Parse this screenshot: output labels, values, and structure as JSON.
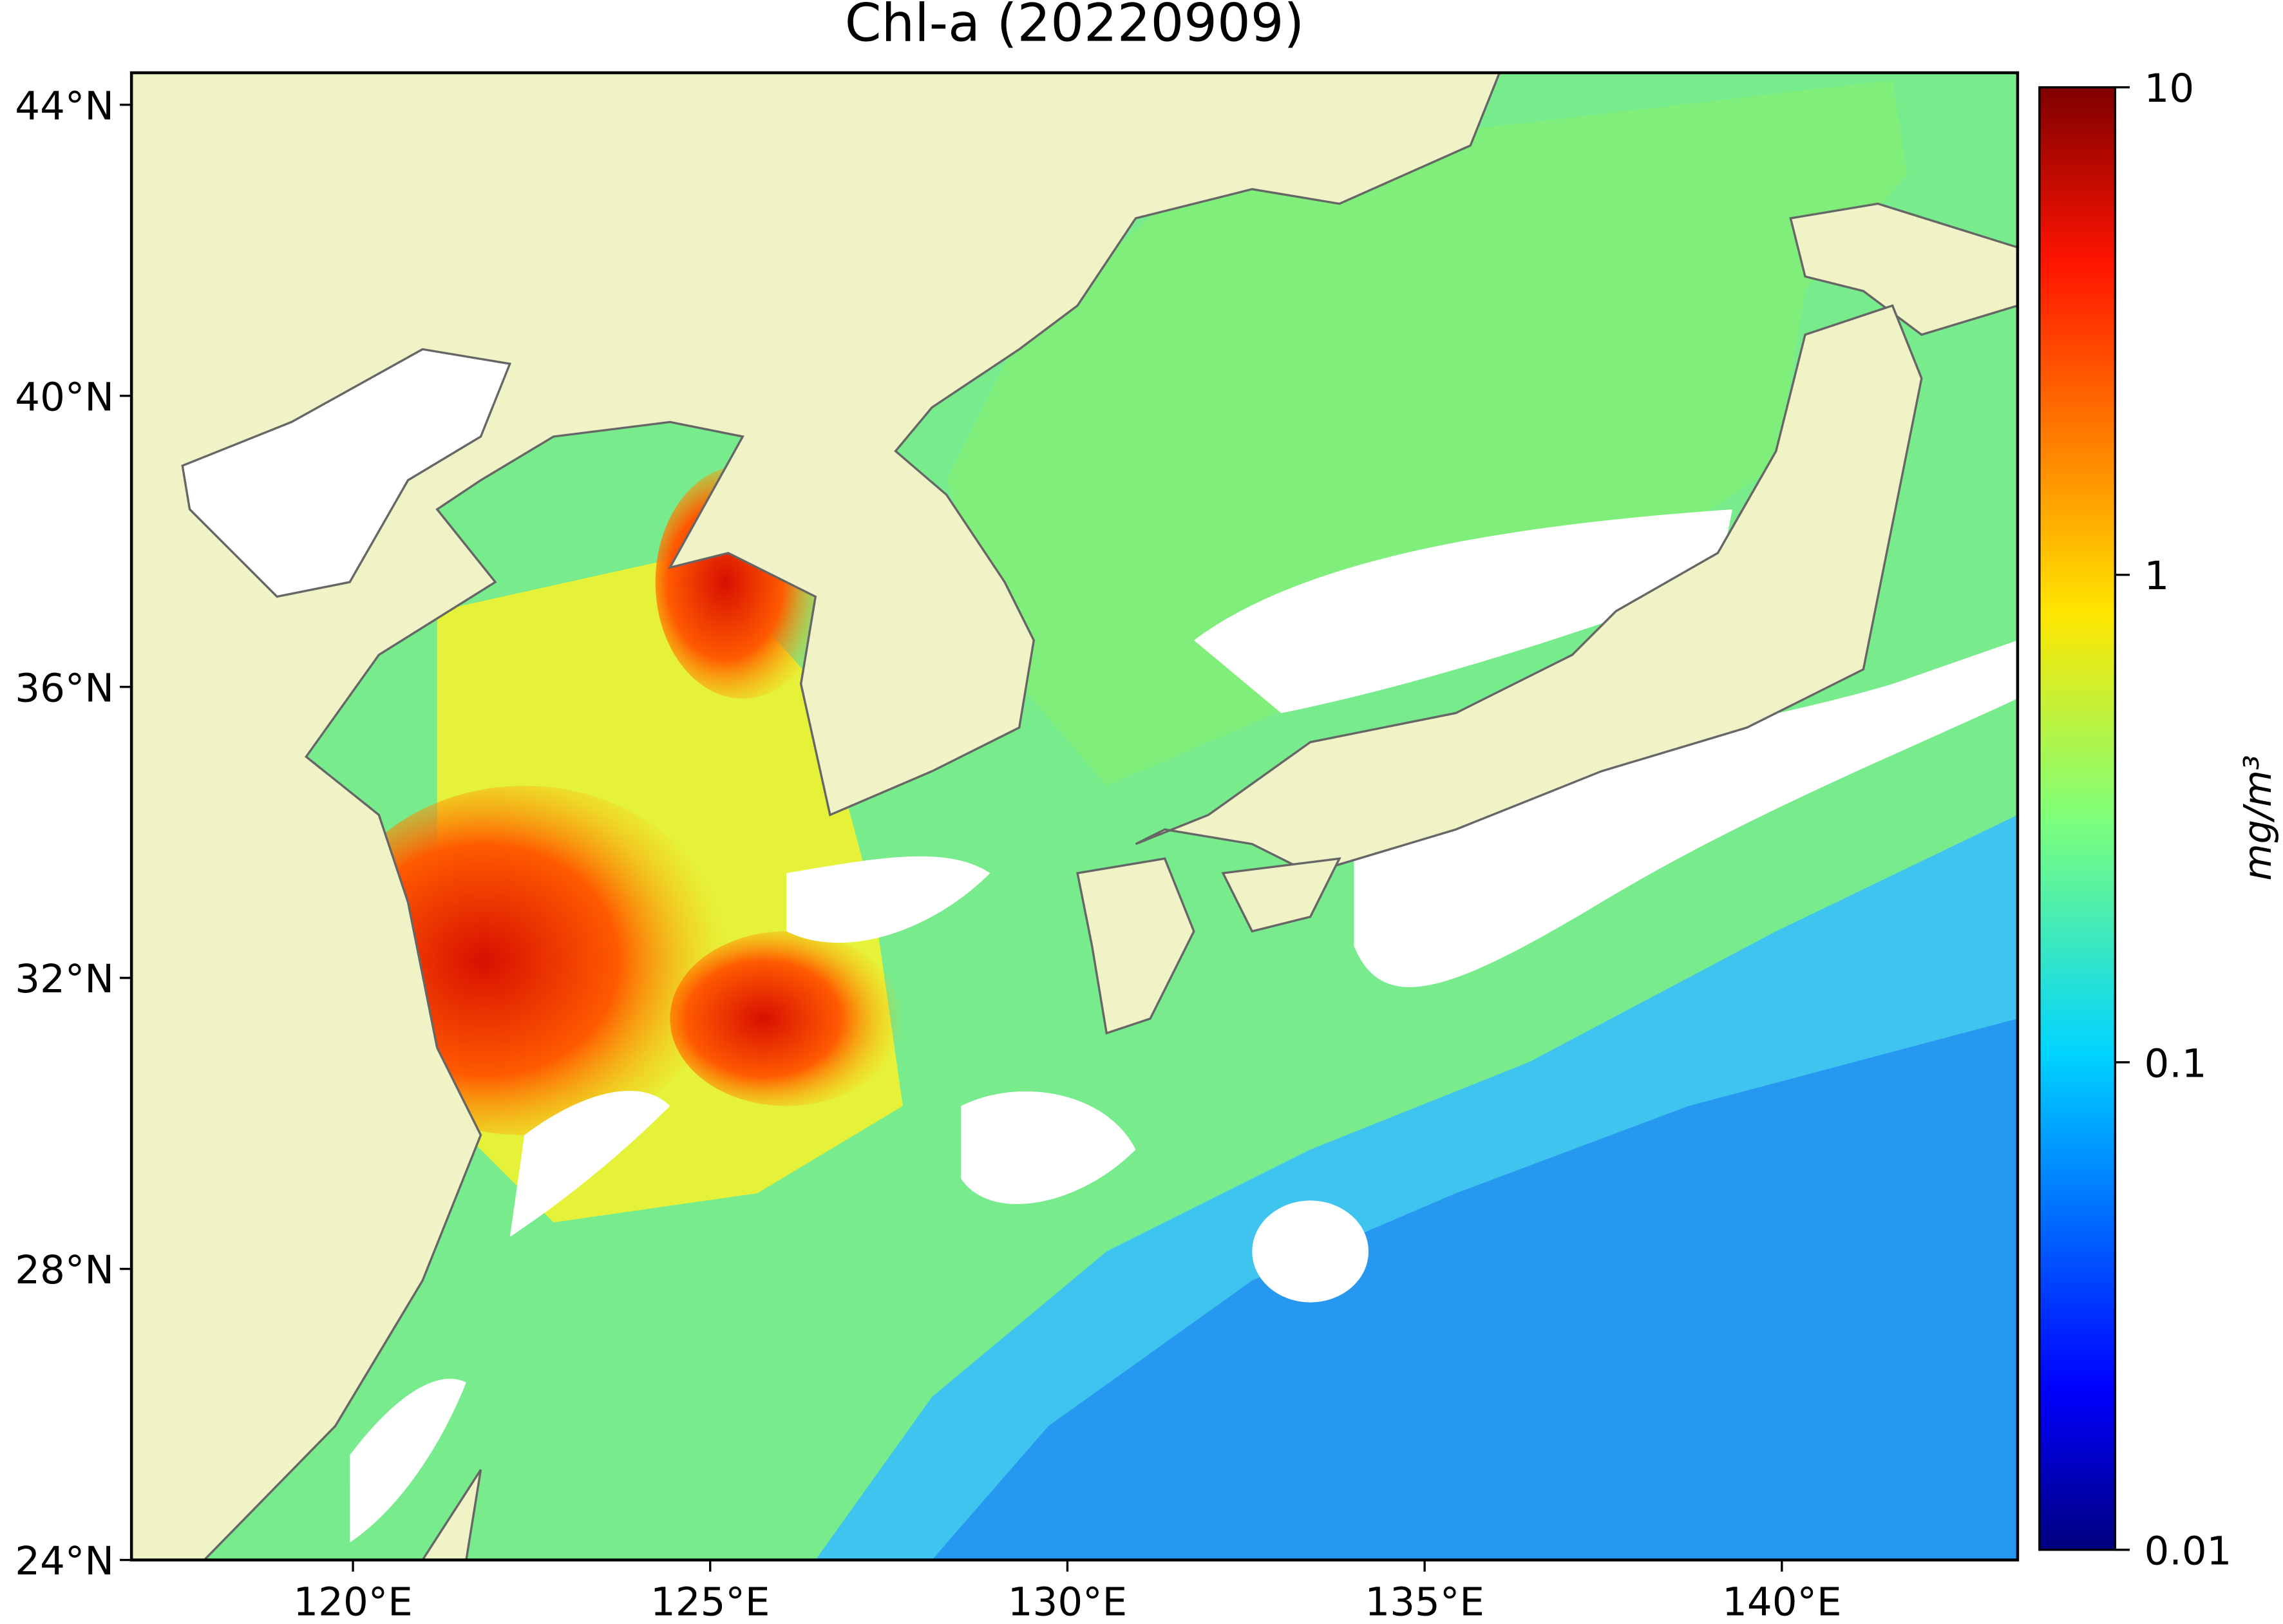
{
  "chart_data": {
    "type": "map",
    "title": "Chl-a (20220909)",
    "xlim": [
      116.9,
      143.3
    ],
    "ylim": [
      24,
      44.44
    ],
    "xticks": [
      {
        "value": 120,
        "label": "120°E"
      },
      {
        "value": 125,
        "label": "125°E"
      },
      {
        "value": 130,
        "label": "130°E"
      },
      {
        "value": 135,
        "label": "135°E"
      },
      {
        "value": 140,
        "label": "140°E"
      }
    ],
    "yticks": [
      {
        "value": 24,
        "label": "24°N"
      },
      {
        "value": 28,
        "label": "28°N"
      },
      {
        "value": 32,
        "label": "32°N"
      },
      {
        "value": 36,
        "label": "36°N"
      },
      {
        "value": 40,
        "label": "40°N"
      },
      {
        "value": 44,
        "label": "44°N"
      }
    ],
    "colorbar": {
      "label": "mg/m³",
      "lim": [
        0.01,
        10
      ],
      "ticks": [
        0.01,
        0.1,
        1,
        10
      ],
      "log": true
    }
  }
}
